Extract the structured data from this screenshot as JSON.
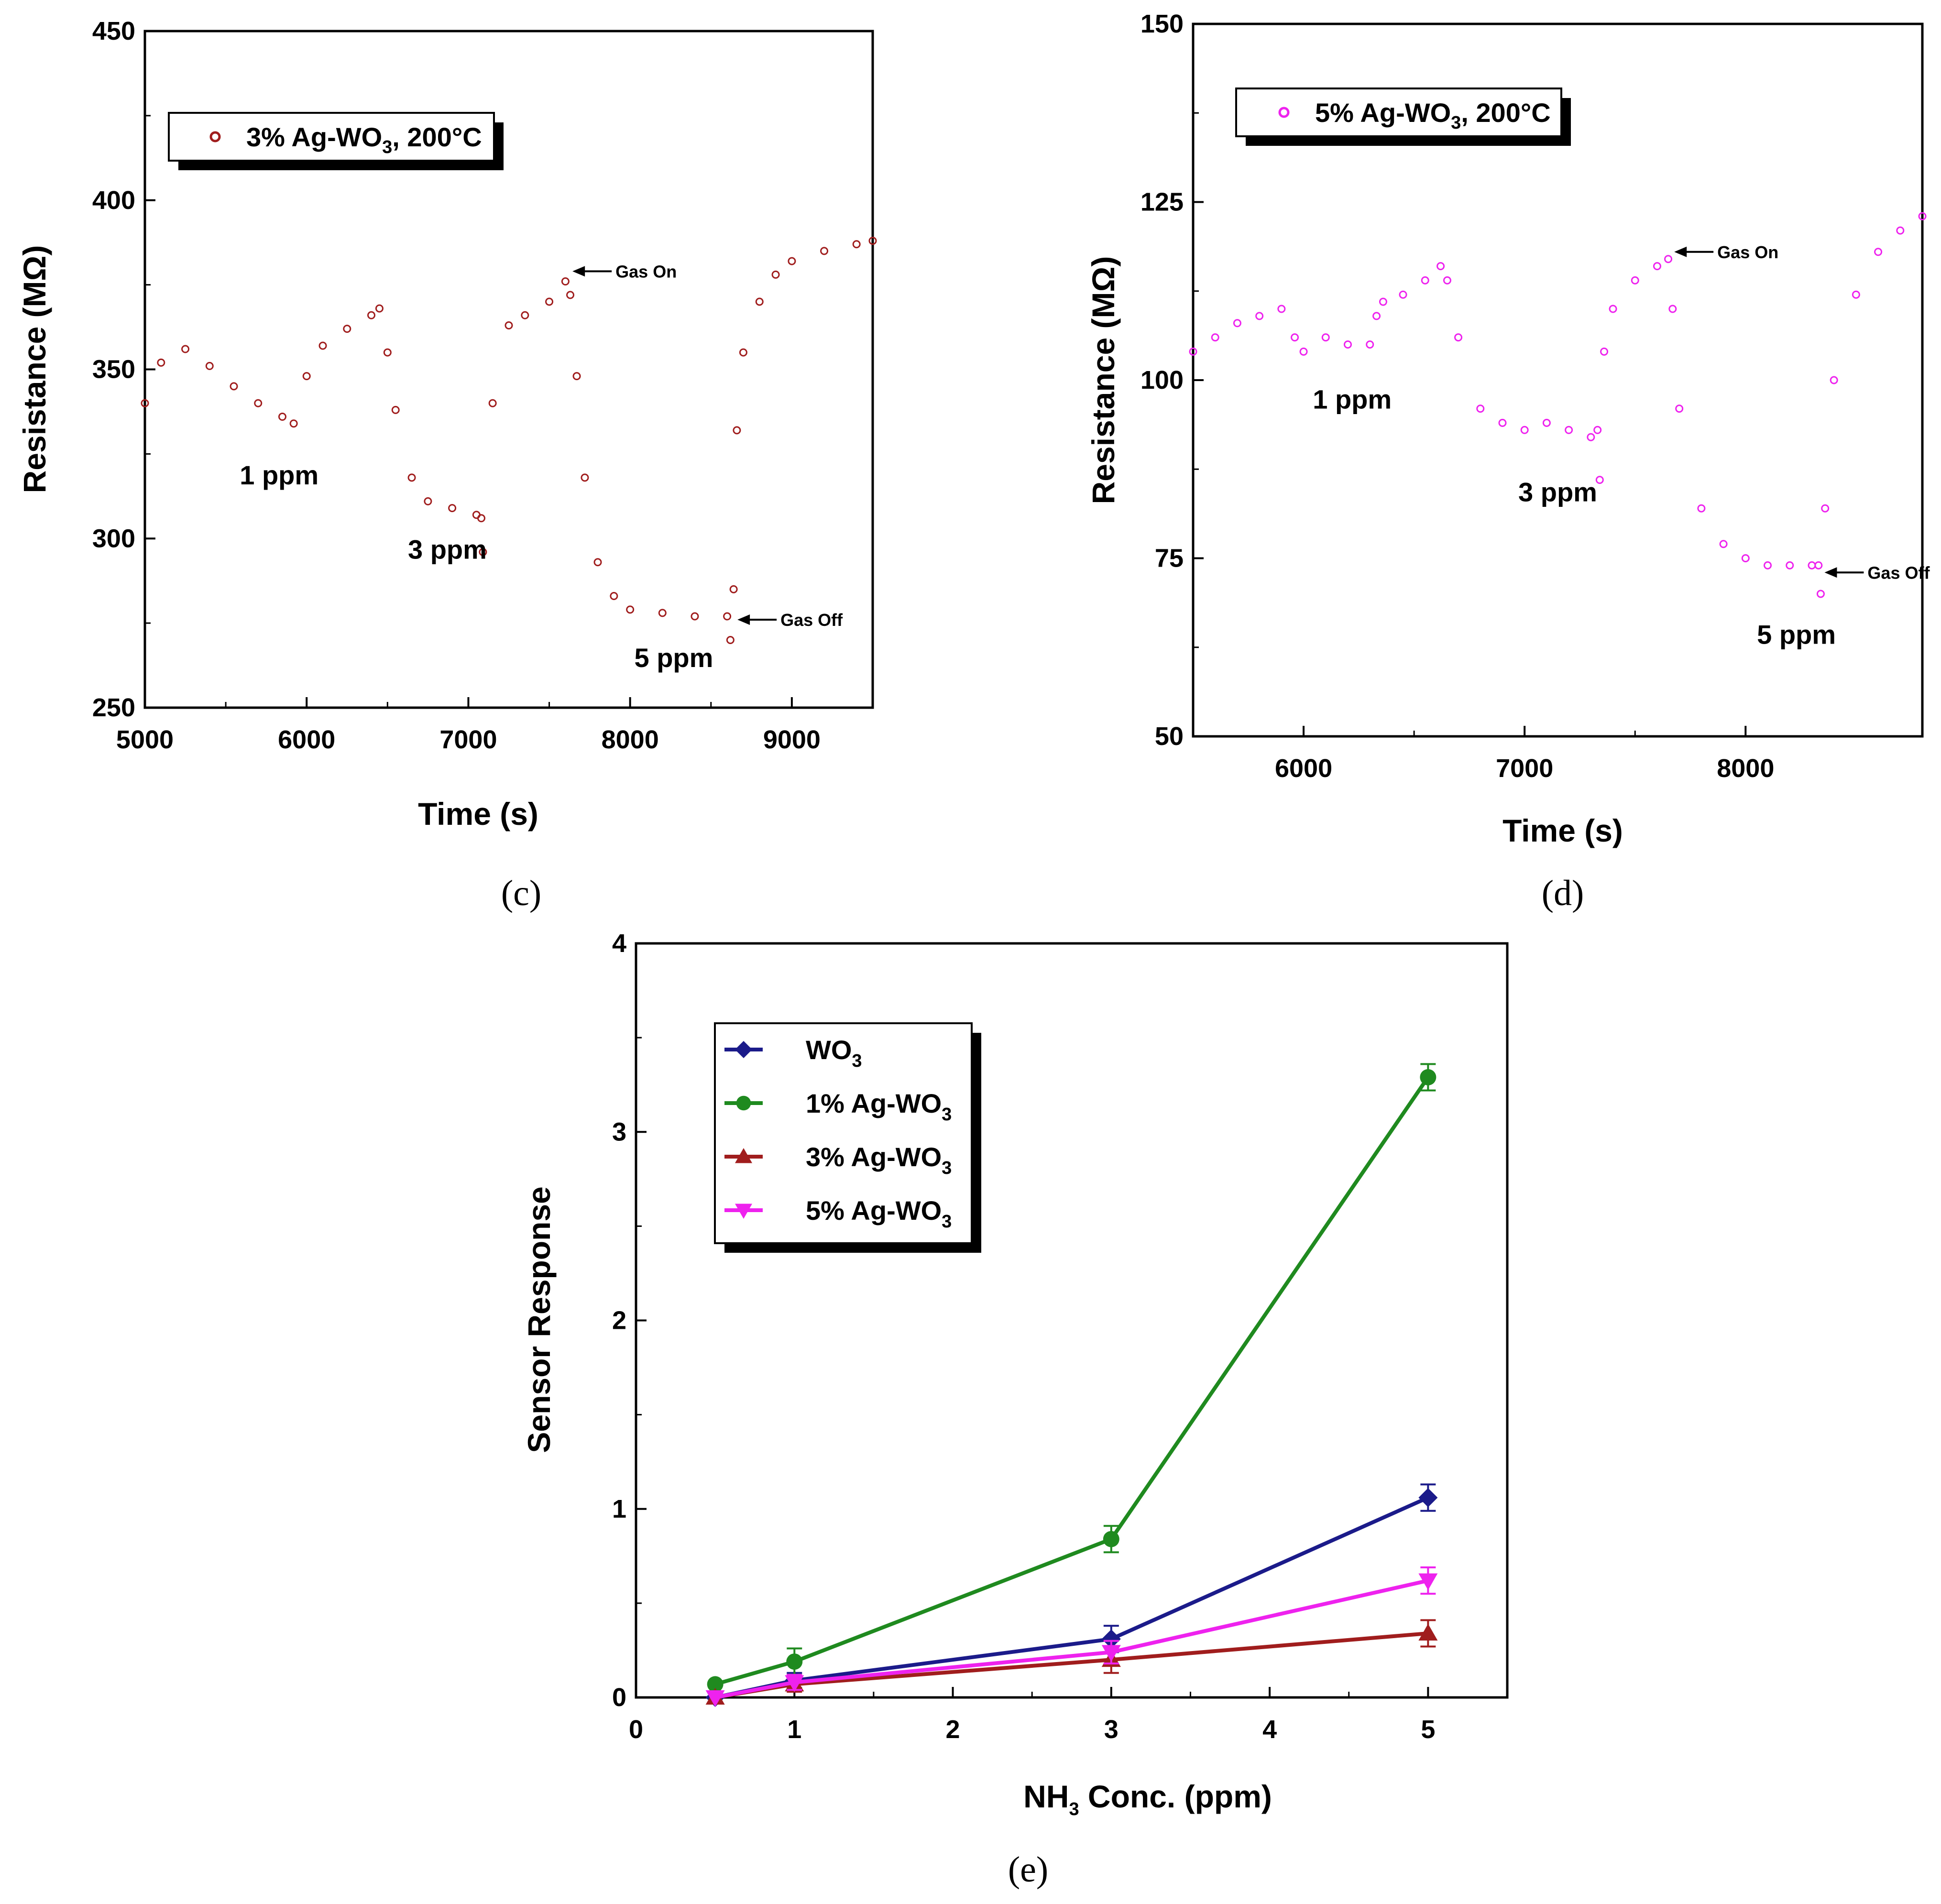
{
  "chart_data": [
    {
      "panel": "(c)",
      "type": "scatter",
      "xlabel": "Time (s)",
      "ylabel": "Resistance (MΩ)",
      "xlim": [
        5000,
        9500
      ],
      "ylim": [
        250,
        450
      ],
      "xticks": [
        5000,
        6000,
        7000,
        8000,
        9000
      ],
      "yticks": [
        250,
        300,
        350,
        400,
        450
      ],
      "legend": {
        "text": "3% Ag-WO",
        "sub": "3",
        "suffix": ", 200°C",
        "placement": "top-left"
      },
      "color": "#a01d1d",
      "annotations": [
        {
          "text": "1 ppm",
          "x": 5830,
          "y": 316
        },
        {
          "text": "3 ppm",
          "x": 6870,
          "y": 294
        },
        {
          "text": "5 ppm",
          "x": 8270,
          "y": 262
        },
        {
          "text": "Gas On",
          "x": 7620,
          "y": 379,
          "arrow": true
        },
        {
          "text": "Gas Off",
          "x": 8640,
          "y": 276,
          "arrow": true
        }
      ],
      "series": [
        {
          "x": [
            5000,
            5100,
            5250,
            5400,
            5550,
            5700,
            5850,
            5920,
            6000,
            6100,
            6250,
            6400,
            6450,
            6500,
            6550,
            6650,
            6750,
            6900,
            7050,
            7080,
            7090,
            7150,
            7250,
            7350,
            7500,
            7600,
            7630,
            7670,
            7720,
            7800,
            7900,
            8000,
            8200,
            8400,
            8600,
            8620,
            8640,
            8660,
            8700,
            8800,
            8900,
            9000,
            9200,
            9400,
            9500
          ],
          "y": [
            340,
            352,
            356,
            351,
            345,
            340,
            336,
            334,
            348,
            357,
            362,
            366,
            368,
            355,
            338,
            318,
            311,
            309,
            307,
            306,
            296,
            340,
            363,
            366,
            370,
            376,
            372,
            348,
            318,
            293,
            283,
            279,
            278,
            277,
            277,
            270,
            285,
            332,
            355,
            370,
            378,
            382,
            385,
            387,
            388
          ]
        }
      ]
    },
    {
      "panel": "(d)",
      "type": "scatter",
      "xlabel": "Time (s)",
      "ylabel": "Resistance (MΩ)",
      "xlim": [
        5500,
        8800
      ],
      "ylim": [
        50,
        150
      ],
      "xticks": [
        6000,
        7000,
        8000
      ],
      "yticks": [
        50,
        75,
        100,
        125,
        150
      ],
      "legend": {
        "text": "5% Ag-WO",
        "sub": "3",
        "suffix": ", 200°C",
        "placement": "top-left"
      },
      "color": "#ee22ee",
      "annotations": [
        {
          "text": "1 ppm",
          "x": 6220,
          "y": 96
        },
        {
          "text": "3 ppm",
          "x": 7150,
          "y": 83
        },
        {
          "text": "5 ppm",
          "x": 8230,
          "y": 63
        },
        {
          "text": "Gas On",
          "x": 7660,
          "y": 118,
          "arrow": true
        },
        {
          "text": "Gas Off",
          "x": 8340,
          "y": 73,
          "arrow": true
        }
      ],
      "series": [
        {
          "x": [
            5500,
            5600,
            5700,
            5800,
            5900,
            5960,
            6000,
            6100,
            6200,
            6300,
            6330,
            6360,
            6450,
            6550,
            6620,
            6650,
            6700,
            6800,
            6900,
            7000,
            7100,
            7200,
            7300,
            7330,
            7340,
            7360,
            7400,
            7500,
            7600,
            7650,
            7670,
            7700,
            7800,
            7900,
            8000,
            8100,
            8200,
            8300,
            8330,
            8340,
            8360,
            8400,
            8500,
            8600,
            8700,
            8800
          ],
          "y": [
            104,
            106,
            108,
            109,
            110,
            106,
            104,
            106,
            105,
            105,
            109,
            111,
            112,
            114,
            116,
            114,
            106,
            96,
            94,
            93,
            94,
            93,
            92,
            93,
            86,
            104,
            110,
            114,
            116,
            117,
            110,
            96,
            82,
            77,
            75,
            74,
            74,
            74,
            74,
            70,
            82,
            100,
            112,
            118,
            121,
            123
          ]
        }
      ]
    },
    {
      "panel": "(e)",
      "type": "line",
      "xlabel": "NH",
      "xlabel_sub": "3",
      "xlabel_suffix": " Conc. (ppm)",
      "ylabel": "Sensor Response",
      "xlim": [
        0,
        5.5
      ],
      "ylim": [
        0,
        4
      ],
      "xticks": [
        0,
        1,
        2,
        3,
        4,
        5
      ],
      "yticks": [
        0,
        1,
        2,
        3,
        4
      ],
      "legend_placement": "top-left",
      "series": [
        {
          "name": "WO",
          "sub": "3",
          "marker": "diamond",
          "color": "#1b1b8a",
          "x": [
            0.5,
            1,
            3,
            5
          ],
          "y": [
            0.0,
            0.09,
            0.31,
            1.06
          ],
          "err": [
            0.0,
            0.04,
            0.07,
            0.07
          ]
        },
        {
          "name": "1% Ag-WO",
          "sub": "3",
          "marker": "circle",
          "color": "#1f8a1f",
          "x": [
            0.5,
            1,
            3,
            5
          ],
          "y": [
            0.07,
            0.19,
            0.84,
            3.29
          ],
          "err": [
            0.0,
            0.07,
            0.07,
            0.07
          ]
        },
        {
          "name": "3% Ag-WO",
          "sub": "3",
          "marker": "triangle-up",
          "color": "#a01d1d",
          "x": [
            0.5,
            1,
            3,
            5
          ],
          "y": [
            0.0,
            0.07,
            0.2,
            0.34
          ],
          "err": [
            0.0,
            0.04,
            0.07,
            0.07
          ]
        },
        {
          "name": "5% Ag-WO",
          "sub": "3",
          "marker": "triangle-down",
          "color": "#ee22ee",
          "x": [
            0.5,
            1,
            3,
            5
          ],
          "y": [
            0.0,
            0.08,
            0.24,
            0.62
          ],
          "err": [
            0.0,
            0.04,
            0.06,
            0.07
          ]
        }
      ]
    }
  ]
}
